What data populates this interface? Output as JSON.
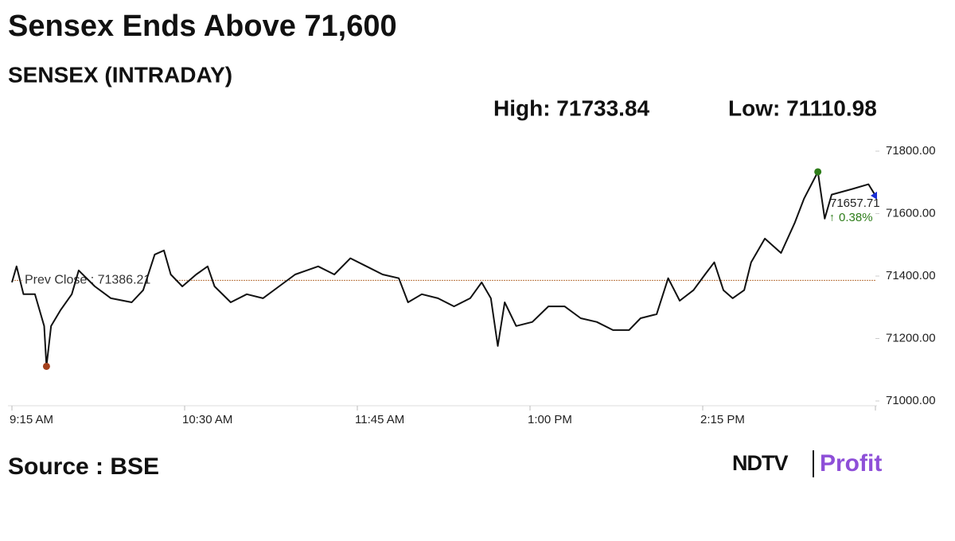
{
  "title": "Sensex Ends Above 71,600",
  "source": "Source : BSE",
  "logo": {
    "brand": "NDTV",
    "product": "Profit"
  },
  "chart_data": {
    "type": "line",
    "subtitle": "SENSEX (INTRADAY)",
    "high": {
      "label": "High: 71733.84",
      "value": 71733.84,
      "x": "3:05 PM",
      "color": "#2e7d1a"
    },
    "low": {
      "label": "Low: 71110.98",
      "value": 71110.98,
      "x": "9:30 AM",
      "color": "#a3401c"
    },
    "prev_close": {
      "label": "Prev Close : 71386.21",
      "value": 71386.21,
      "color": "#b8703a"
    },
    "last": {
      "value": 71657.71,
      "color": "#1a2fd6"
    },
    "change": {
      "value": 0.38,
      "label": "0.38%",
      "color": "#2e7d1a"
    },
    "x": [
      "9:15 AM",
      "9:17 AM",
      "9:20 AM",
      "9:25 AM",
      "9:29 AM",
      "9:30 AM",
      "9:32 AM",
      "9:36 AM",
      "9:41 AM",
      "9:44 AM",
      "9:51 AM",
      "9:58 AM",
      "10:07 AM",
      "10:12 AM",
      "10:17 AM",
      "10:21 AM",
      "10:24 AM",
      "10:29 AM",
      "10:35 AM",
      "10:40 AM",
      "10:43 AM",
      "10:50 AM",
      "10:57 AM",
      "11:04 AM",
      "11:11 AM",
      "11:18 AM",
      "11:28 AM",
      "11:35 AM",
      "11:42 AM",
      "11:49 AM",
      "11:56 AM",
      "12:03 PM",
      "12:07 PM",
      "12:13 PM",
      "12:20 PM",
      "12:27 PM",
      "12:34 PM",
      "12:39 PM",
      "12:43 PM",
      "12:46 PM",
      "12:49 PM",
      "12:54 PM",
      "1:01 PM",
      "1:08 PM",
      "1:15 PM",
      "1:22 PM",
      "1:29 PM",
      "1:36 PM",
      "1:43 PM",
      "1:48 PM",
      "1:55 PM",
      "2:00 PM",
      "2:05 PM",
      "2:11 PM",
      "2:16 PM",
      "2:20 PM",
      "2:24 PM",
      "2:28 PM",
      "2:33 PM",
      "2:36 PM",
      "2:42 PM",
      "2:49 PM",
      "2:55 PM",
      "2:59 PM",
      "3:05 PM",
      "3:08 PM",
      "3:11 PM",
      "3:20 PM",
      "3:27 PM",
      "3:30 PM"
    ],
    "series": [
      {
        "name": "SENSEX",
        "color": "#111111",
        "values": [
          71380,
          71431,
          71342,
          71342,
          71240,
          71110.98,
          71240,
          71290,
          71342,
          71418,
          71367,
          71329,
          71316,
          71355,
          71469,
          71482,
          71405,
          71367,
          71405,
          71431,
          71367,
          71316,
          71342,
          71329,
          71367,
          71405,
          71431,
          71405,
          71457,
          71431,
          71405,
          71393,
          71316,
          71342,
          71329,
          71303,
          71329,
          71380,
          71329,
          71176,
          71316,
          71240,
          71253,
          71303,
          71303,
          71265,
          71253,
          71227,
          71227,
          71265,
          71278,
          71393,
          71321,
          71355,
          71405,
          71444,
          71355,
          71329,
          71355,
          71444,
          71520,
          71474,
          71571,
          71648,
          71733.84,
          71584,
          71661,
          71679,
          71694,
          71657.71
        ]
      }
    ],
    "xlim": [
      "9:15 AM",
      "3:30 PM"
    ],
    "xticks": [
      "9:15 AM",
      "10:30 AM",
      "11:45 AM",
      "1:00 PM",
      "2:15 PM",
      "3:30 PM"
    ],
    "xtick_labels_shown": [
      "9:15 AM",
      "10:30 AM",
      "11:45 AM",
      "1:00 PM",
      "2:15 PM"
    ],
    "ylim": [
      71000,
      71800
    ],
    "yticks": [
      {
        "value": 71000,
        "label": "71000.00"
      },
      {
        "value": 71200,
        "label": "71200.00"
      },
      {
        "value": 71400,
        "label": "71400.00"
      },
      {
        "value": 71600,
        "label": "71600.00"
      },
      {
        "value": 71800,
        "label": "71800.00"
      }
    ],
    "grid": false
  }
}
